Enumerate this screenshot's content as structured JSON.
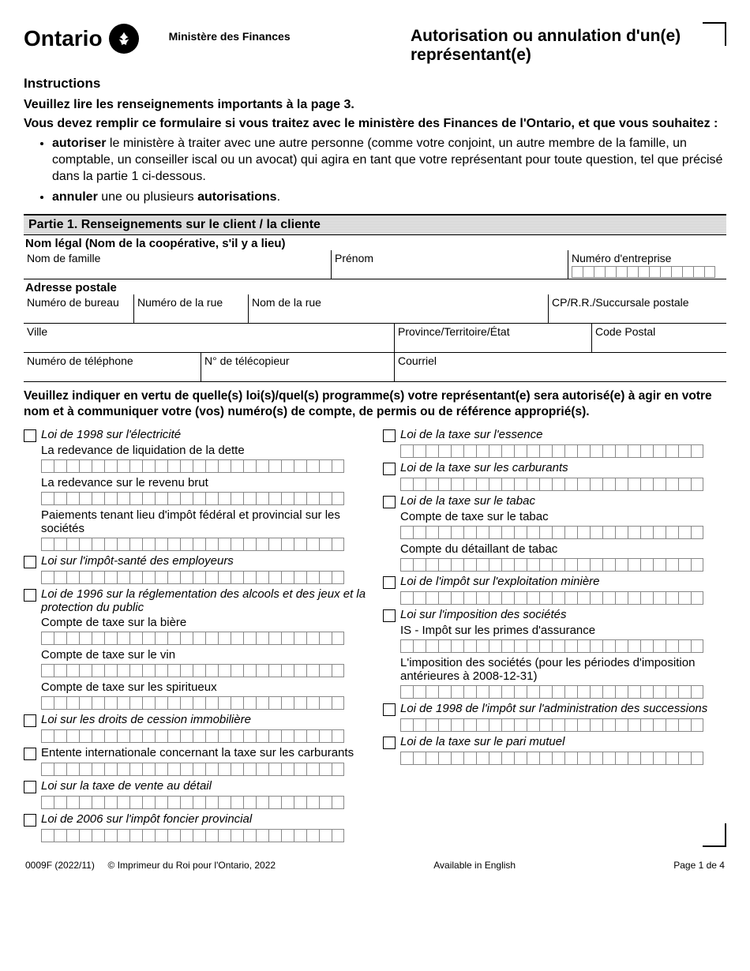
{
  "header": {
    "logo_text": "Ontario",
    "ministry": "Ministère des Finances",
    "title": "Autorisation ou annulation d'un(e) représentant(e)"
  },
  "instructions": {
    "heading": "Instructions",
    "line1": "Veuillez lire les renseignements importants à la page 3.",
    "line2": "Vous devez remplir ce formulaire si vous traitez avec le ministère des Finances de l'Ontario, et que vous souhaitez :",
    "bullet1_bold": "autoriser",
    "bullet1_rest": " le ministère à traiter avec une autre personne (comme votre conjoint, un autre membre de la famille, un comptable, un conseiller iscal ou un avocat) qui agira en tant que votre représentant pour toute question, tel que précisé dans la partie 1 ci-dessous.",
    "bullet2_bold1": "annuler",
    "bullet2_mid": " une ou plusieurs ",
    "bullet2_bold2": "autorisations",
    "bullet2_end": "."
  },
  "part1": {
    "bar": "Partie 1.  Renseignements sur le client / la cliente",
    "legal_name_label": "Nom légal (Nom de la coopérative, s'il y a lieu)",
    "last_name": "Nom de famille",
    "first_name": "Prénom",
    "business_number": "Numéro d'entreprise",
    "mailing_header": "Adresse postale",
    "unit": "Numéro de bureau",
    "street_no": "Numéro de la rue",
    "street_name": "Nom de la rue",
    "po": "CP/R.R./Succursale postale",
    "city": "Ville",
    "province": "Province/Territoire/État",
    "postal": "Code Postal",
    "phone": "Numéro de téléphone",
    "fax": "N° de télécopieur",
    "email": "Courriel"
  },
  "laws_intro": "Veuillez indiquer en vertu de quelle(s) loi(s)/quel(s) programme(s) votre représentant(e) sera autorisé(e) à agir en votre nom et à communiquer votre (vos) numéro(s) de compte, de permis ou de référence approprié(s).",
  "left_laws": [
    {
      "title": "Loi de 1998 sur l'électricité",
      "italic": true,
      "subs": [
        "La redevance de liquidation de la dette",
        "La redevance sur le revenu brut",
        "Paiements tenant lieu d'impôt fédéral et provincial sur les sociétés"
      ]
    },
    {
      "title": "Loi sur l'impôt-santé des employeurs",
      "italic": true,
      "subs": [
        ""
      ]
    },
    {
      "title": "Loi de 1996 sur la réglementation des alcools et des jeux et la protection du public",
      "italic": true,
      "subs": [
        "Compte de taxe sur la bière",
        "Compte de taxe sur le vin",
        "Compte de taxe sur les spiritueux"
      ],
      "nosubgrid_first": true
    },
    {
      "title": "Loi sur les droits de cession immobilière",
      "italic": true,
      "subs": [
        ""
      ]
    },
    {
      "title": "Entente internationale concernant la taxe sur les carburants",
      "italic": false,
      "subs": [
        ""
      ]
    },
    {
      "title": "Loi sur la taxe de vente au détail",
      "italic": true,
      "subs": [
        ""
      ]
    },
    {
      "title": "Loi de 2006 sur l'impôt foncier provincial",
      "italic": true,
      "subs": [
        ""
      ]
    }
  ],
  "right_laws": [
    {
      "title": "Loi de la taxe sur l'essence",
      "italic": true,
      "subs": [
        ""
      ]
    },
    {
      "title": "Loi de la taxe sur les carburants",
      "italic": true,
      "subs": [
        ""
      ]
    },
    {
      "title": "Loi de la taxe sur le tabac",
      "italic": true,
      "subs": [
        "Compte de taxe sur le tabac",
        "Compte du détaillant de tabac"
      ],
      "nosubgrid_first": true
    },
    {
      "title": "Loi de l'impôt sur l'exploitation minière",
      "italic": true,
      "subs": [
        ""
      ]
    },
    {
      "title": "Loi sur l'imposition des sociétés",
      "italic": true,
      "subs": [
        "IS - Impôt sur les primes d'assurance",
        "L'imposition des sociétés (pour les périodes d'imposition antérieures à 2008-12-31)"
      ],
      "nosubgrid_first": true
    },
    {
      "title": "Loi de 1998 de l'impôt sur l'administration des successions",
      "italic": true,
      "subs": [
        ""
      ]
    },
    {
      "title": "Loi de la taxe sur le pari mutuel",
      "italic": true,
      "subs": [
        ""
      ]
    }
  ],
  "footer": {
    "form_no": "0009F (2022/11)",
    "copyright": "© Imprimeur du Roi pour l'Ontario, 2022",
    "english": "Available in English",
    "page": "Page 1 de 4"
  },
  "style": {
    "num_boxes": 24,
    "bn_boxes": 13
  }
}
